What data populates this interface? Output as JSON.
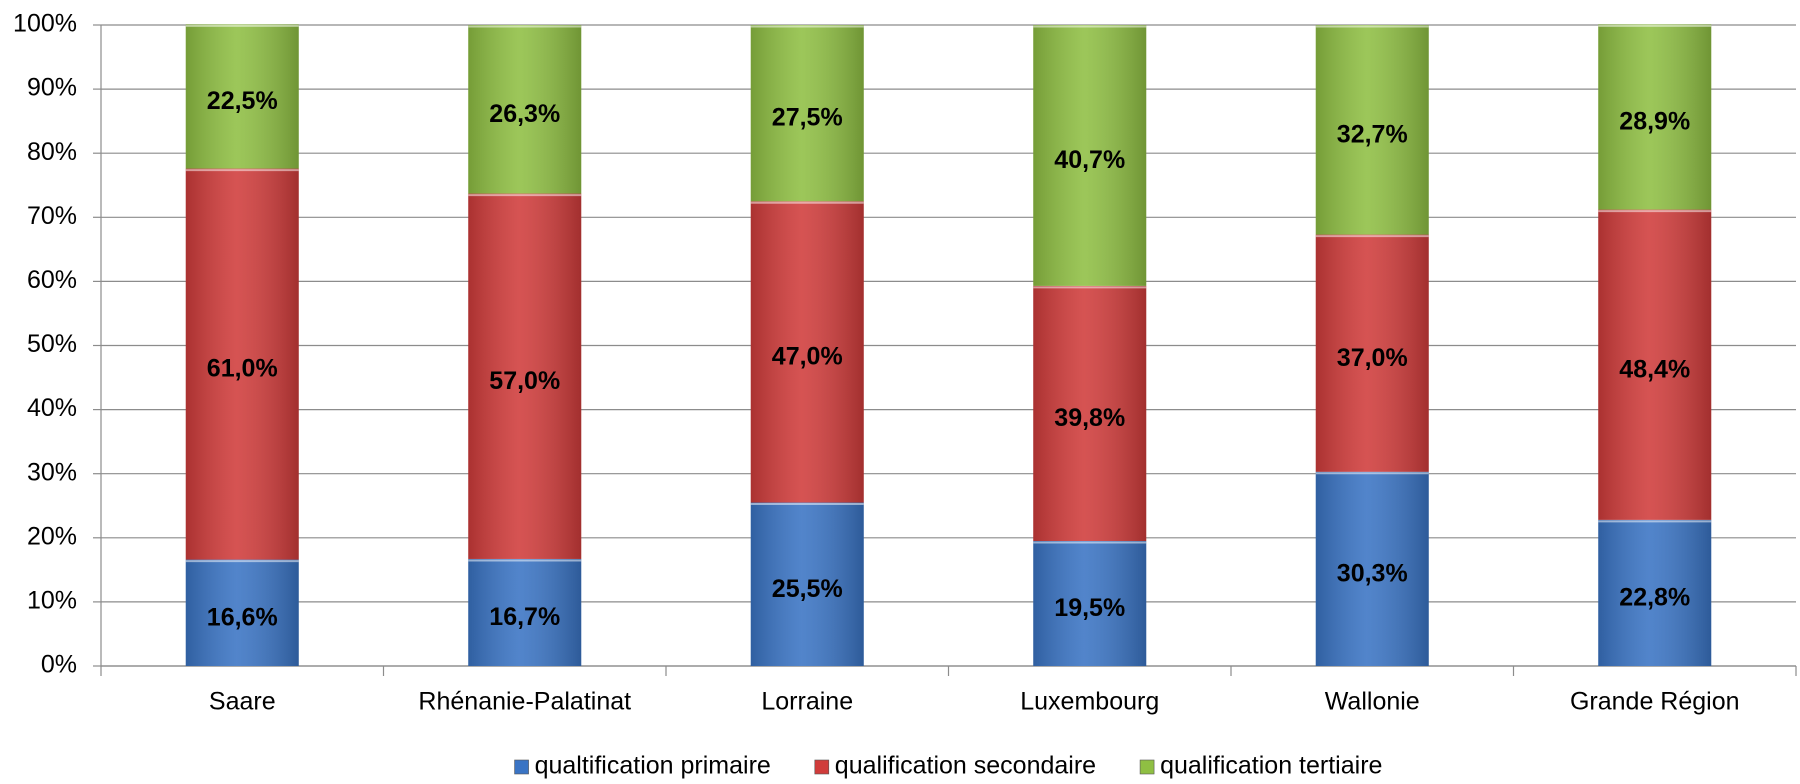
{
  "chart_data": {
    "type": "stacked_bar",
    "categories": [
      "Saare",
      "Rhénanie-Palatinat",
      "Lorraine",
      "Luxembourg",
      "Wallonie",
      "Grande Région"
    ],
    "series": [
      {
        "name": "qualtification primaire",
        "color": "#3a74c4",
        "values": [
          16.6,
          16.7,
          25.5,
          19.5,
          30.3,
          22.8
        ],
        "value_labels": [
          "16,6%",
          "16,7%",
          "25,5%",
          "19,5%",
          "30,3%",
          "22,8%"
        ]
      },
      {
        "name": "qualification secondaire",
        "color": "#d03c3b",
        "values": [
          61.0,
          57.0,
          47.0,
          39.8,
          37.0,
          48.4
        ],
        "value_labels": [
          "61,0%",
          "57,0%",
          "47,0%",
          "39,8%",
          "37,0%",
          "48,4%"
        ]
      },
      {
        "name": "qualification tertiaire",
        "color": "#8fbf43",
        "values": [
          22.5,
          26.3,
          27.5,
          40.7,
          32.7,
          28.9
        ],
        "value_labels": [
          "22,5%",
          "26,3%",
          "27,5%",
          "40,7%",
          "32,7%",
          "28,9%"
        ]
      }
    ],
    "ylim": [
      0,
      100
    ],
    "yticks": [
      {
        "value": 0,
        "label": "0%"
      },
      {
        "value": 10,
        "label": "10%"
      },
      {
        "value": 20,
        "label": "20%"
      },
      {
        "value": 30,
        "label": "30%"
      },
      {
        "value": 40,
        "label": "40%"
      },
      {
        "value": 50,
        "label": "50%"
      },
      {
        "value": 60,
        "label": "60%"
      },
      {
        "value": 70,
        "label": "70%"
      },
      {
        "value": 80,
        "label": "80%"
      },
      {
        "value": 90,
        "label": "90%"
      },
      {
        "value": 100,
        "label": "100%"
      }
    ],
    "grid": true,
    "legend": "bottom"
  }
}
